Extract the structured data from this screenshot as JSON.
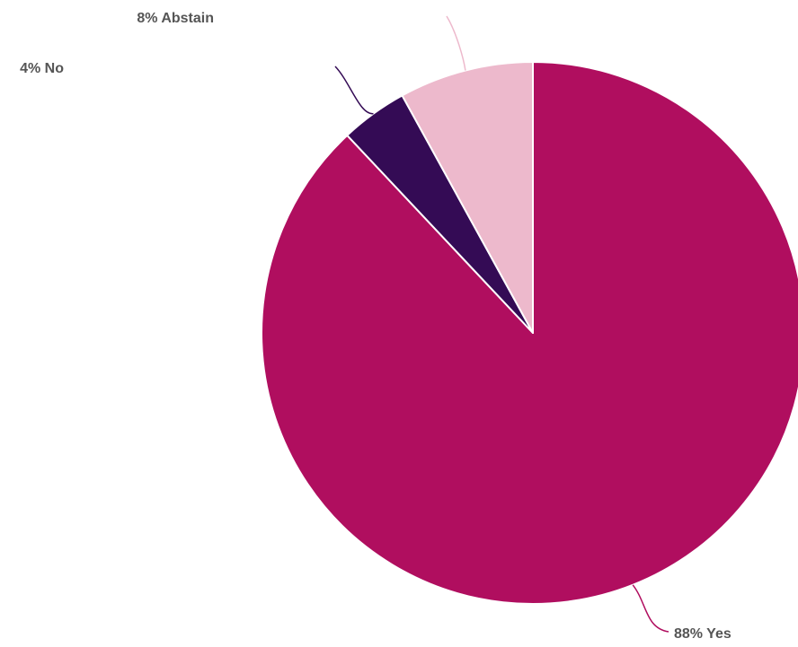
{
  "chart_data": {
    "type": "pie",
    "title": "",
    "slices": [
      {
        "name": "Yes",
        "value": 88,
        "label": "88% Yes",
        "color": "#B00E5F"
      },
      {
        "name": "No",
        "value": 4,
        "label": "4% No",
        "color": "#340B55"
      },
      {
        "name": "Abstain",
        "value": 8,
        "label": "8% Abstain",
        "color": "#EDB9CC"
      }
    ],
    "start": "12 o'clock",
    "direction": "clockwise",
    "labels": "outside with leader lines",
    "legend": "none"
  }
}
